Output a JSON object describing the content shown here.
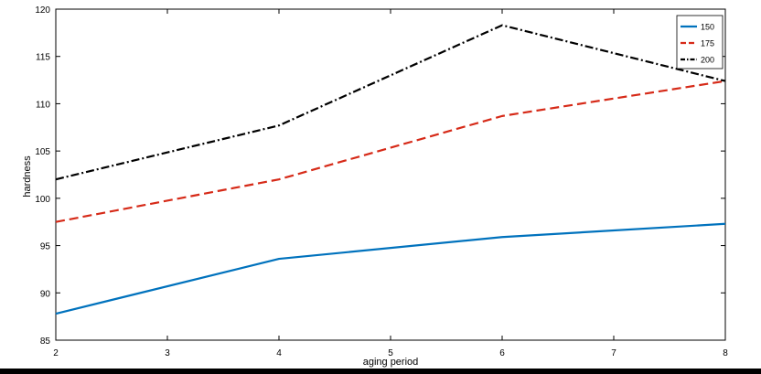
{
  "colors": {
    "background": "#ffffff",
    "axis": "#000000",
    "series_150": "#0072bd",
    "series_175": "#d62a18",
    "series_200": "#000000"
  },
  "chart_data": {
    "type": "line",
    "xlabel": "aging period",
    "ylabel": "hardness",
    "xlim": [
      2,
      8
    ],
    "ylim": [
      85,
      120
    ],
    "xticks": [
      2,
      3,
      4,
      5,
      6,
      7,
      8
    ],
    "yticks": [
      85,
      90,
      95,
      100,
      105,
      110,
      115,
      120
    ],
    "grid": false,
    "legend_position": "top-right",
    "x": [
      2,
      4,
      6,
      8
    ],
    "series": [
      {
        "name": "150",
        "values": [
          87.8,
          93.6,
          95.9,
          97.3
        ],
        "style": "solid"
      },
      {
        "name": "175",
        "values": [
          97.5,
          102.0,
          108.7,
          112.4
        ],
        "style": "dashed"
      },
      {
        "name": "200",
        "values": [
          102.0,
          107.7,
          118.3,
          112.4
        ],
        "style": "dashdot"
      }
    ]
  }
}
